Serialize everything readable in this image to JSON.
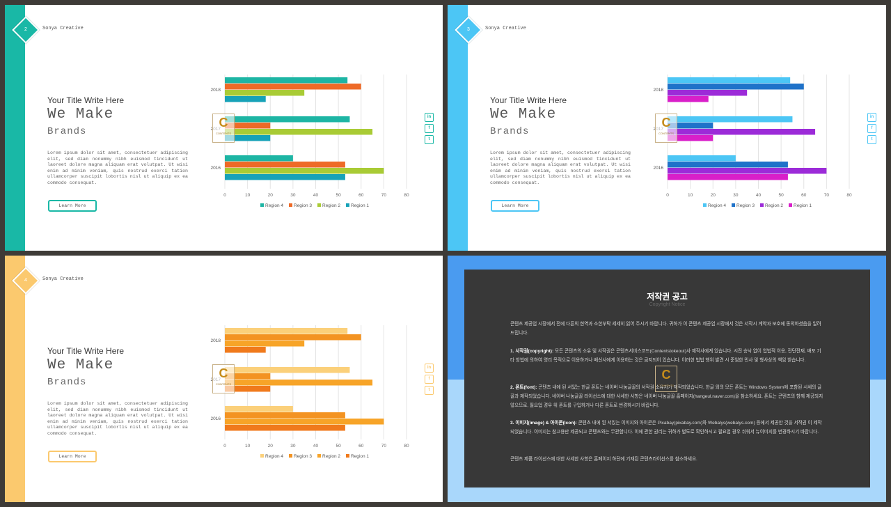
{
  "brand": "Sonya Creative",
  "slides": [
    {
      "num": "2",
      "accent": "#19b8a6",
      "title_small": "Your Title Write Here",
      "title_big": "We Make",
      "title_sub": "Brands",
      "body": "Lorem ipsum dolor sit amet, consectetuer adipiscing elit, sed diam nonummy nibh euismod tincidunt ut laoreet dolore magna aliquam erat volutpat. Ut wisi enim ad minim veniam, quis nostrud exerci tation ullamcorper suscipit lobortis nisl ut aliquip ex ea commodo consequat.",
      "button": "Learn More",
      "social": [
        "in",
        "f",
        "t"
      ]
    },
    {
      "num": "3",
      "accent": "#4cc6f5",
      "title_small": "Your Title Write Here",
      "title_big": "We Make",
      "title_sub": "Brands",
      "body": "Lorem ipsum dolor sit amet, consectetuer adipiscing elit, sed diam nonummy nibh euismod tincidunt ut laoreet dolore magna aliquam erat volutpat. Ut wisi enim ad minim veniam, quis nostrud exerci tation ullamcorper suscipit lobortis nisl ut aliquip ex ea commodo consequat.",
      "button": "Learn More",
      "social": [
        "in",
        "f",
        "t"
      ]
    },
    {
      "num": "4",
      "accent": "#fbc96e",
      "title_small": "Your Title Write Here",
      "title_big": "We Make",
      "title_sub": "Brands",
      "body": "Lorem ipsum dolor sit amet, consectetuer adipiscing elit, sed diam nonummy nibh euismod tincidunt ut laoreet dolore magna aliquam erat volutpat. Ut wisi enim ad minim veniam, quis nostrud exerci tation ullamcorper suscipit lobortis nisl ut aliquip ex ea commodo consequat.",
      "button": "Learn More",
      "social": [
        "in",
        "f",
        "t"
      ]
    }
  ],
  "logo": {
    "letter": "C",
    "text": "CONTENTS"
  },
  "chart_data": [
    {
      "type": "bar",
      "orientation": "horizontal",
      "categories": [
        "2018",
        "2017",
        "2016"
      ],
      "xlim": [
        0,
        80
      ],
      "xticks": [
        0,
        10,
        20,
        30,
        40,
        50,
        60,
        70,
        80
      ],
      "grid": true,
      "legend_placement": "bottom",
      "series": [
        {
          "name": "Region 1",
          "color": "#17a2b8",
          "values": [
            18,
            20,
            53
          ]
        },
        {
          "name": "Region 2",
          "color": "#a9cb35",
          "values": [
            35,
            65,
            70
          ]
        },
        {
          "name": "Region 3",
          "color": "#ee6a27",
          "values": [
            60,
            20,
            53
          ]
        },
        {
          "name": "Region 4",
          "color": "#1db5a4",
          "values": [
            54,
            55,
            30
          ]
        }
      ]
    },
    {
      "type": "bar",
      "orientation": "horizontal",
      "categories": [
        "2018",
        "2017",
        "2016"
      ],
      "xlim": [
        0,
        80
      ],
      "xticks": [
        0,
        10,
        20,
        30,
        40,
        50,
        60,
        70,
        80
      ],
      "grid": true,
      "legend_placement": "bottom",
      "series": [
        {
          "name": "Region 1",
          "color": "#d91fc9",
          "values": [
            18,
            20,
            53
          ]
        },
        {
          "name": "Region 2",
          "color": "#9c2bd8",
          "values": [
            35,
            65,
            70
          ]
        },
        {
          "name": "Region 3",
          "color": "#1f72c9",
          "values": [
            60,
            20,
            53
          ]
        },
        {
          "name": "Region 4",
          "color": "#4cc6f5",
          "values": [
            54,
            55,
            30
          ]
        }
      ]
    },
    {
      "type": "bar",
      "orientation": "horizontal",
      "categories": [
        "2018",
        "2017",
        "2016"
      ],
      "xlim": [
        0,
        80
      ],
      "xticks": [
        0,
        10,
        20,
        30,
        40,
        50,
        60,
        70,
        80
      ],
      "grid": true,
      "legend_placement": "bottom",
      "series": [
        {
          "name": "Region 1",
          "color": "#f07a1c",
          "values": [
            18,
            20,
            53
          ]
        },
        {
          "name": "Region 2",
          "color": "#f7a428",
          "values": [
            35,
            65,
            70
          ]
        },
        {
          "name": "Region 3",
          "color": "#f39322",
          "values": [
            60,
            20,
            53
          ]
        },
        {
          "name": "Region 4",
          "color": "#fbd07a",
          "values": [
            54,
            55,
            30
          ]
        }
      ]
    }
  ],
  "copyright": {
    "title": "저작권 공고",
    "subtitle": "Copyright Notice",
    "intro": "콘텐츠 제공업 시장에서 전에 다른의 현역과 소한부탁 세세히 읽어 주시기 바랍니다. 귀하가 이 콘텐츠 제공업 시장에서 것은 서작시 계약과 보호에 동의하셨음을 알려드립니다.",
    "p1_label": "1. 서작권(copyright):",
    "p1": " 모든 콘텐츠의 소유 및 서작권은 콘텐츠서비스코드(Contentstokeout)사 제작사에게 있습니다. 시전 승낙 없이 업법적 이용, 전단전재, 배포 기타 방법에 의하여 영리 목적으로 이용하거나 배신사에게 이용하는 것은 금지되어 있습니다. 이러한 법법 행위 발견 시 준엄한 민사 및 형사상의 책임 받습니다.",
    "p2_label": "2. 폰트(font):",
    "p2": " 콘텐츠 내에 된 서있는 한글 폰트는 네이버 나눔글꼴의 서작권 소유자가 제작되었습니다. 한글 외의 모든 폰트는 Windows System에 포함된 시세의 글꼴과 제작되었습니다. 네이버 나눔글꼴 라이선스에 대한 사세한 사항은 네이버 나눔글꼴 홈페이지(hangeul.naver.com)을 참소하세요. 폰트는 콘텐츠의 함께 제공되지 않으므로, 필요업 경우 위 폰트를 구입하거나 다른 폰트로 번경하시기 바랍니다.",
    "p3_label": "3. 이미지(image) & 아이콘(icon):",
    "p3": " 콘텐츠 내에 된 서있는 이미지와 아이콘은 Pixabay(pixabay.com)와 Webalys(webalys.com) 등에서 제공한 것을 서작권 이 제작되었습니다. 이미지는 참고용만 제공되고 콘텐츠와는 무관합니다. 이에 관한 권리는 귀하가 별도로 확인하시고 필요업 경우 쉬워서 뉴이미지를 번경하시기 바랍니다.",
    "outro": "콘텐츠 제품 라이선스에 대한 사세한 사항은 홈페이지 하단에 기재된 콘텐츠라이선스를 참소하세요."
  }
}
